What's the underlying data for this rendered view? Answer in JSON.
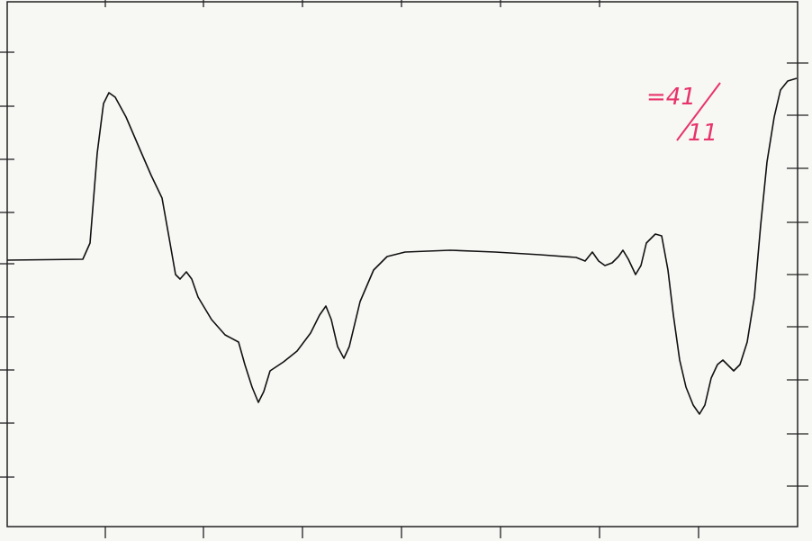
{
  "annotation": {
    "numerator": "=41",
    "denominator": "11"
  }
}
